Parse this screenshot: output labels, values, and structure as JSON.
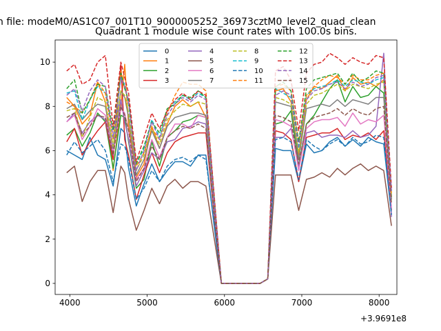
{
  "header": {
    "title": "n file: modeM0/AS1C07_001T10_9000005252_36973cztM0_level2_quad_clean",
    "subtitle": "Quadrant 1 module wise count rates with 100.0s bins."
  },
  "chart_data": {
    "type": "line",
    "x_offset_label": "+3.9691e8",
    "xlim": [
      3810,
      8230
    ],
    "ylim": [
      -0.5,
      11
    ],
    "xticks": [
      4000,
      5000,
      6000,
      7000,
      8000
    ],
    "xtick_labels": [
      "4000",
      "5000",
      "6000",
      "7000",
      "8000"
    ],
    "yticks": [
      0,
      2,
      4,
      6,
      8,
      10
    ],
    "ytick_labels": [
      "0",
      "2",
      "4",
      "6",
      "8",
      "10"
    ],
    "legend_position": "top-center",
    "legend_ncol": 4,
    "x": [
      3960,
      4060,
      4160,
      4260,
      4360,
      4460,
      4560,
      4660,
      4710,
      4760,
      4860,
      4960,
      5060,
      5160,
      5260,
      5360,
      5460,
      5560,
      5660,
      5760,
      5860,
      5960,
      6060,
      6160,
      6260,
      6360,
      6460,
      6560,
      6660,
      6760,
      6860,
      6960,
      7060,
      7160,
      7260,
      7360,
      7460,
      7560,
      7660,
      7760,
      7860,
      7960,
      8060,
      8160
    ],
    "series": [
      {
        "name": "0",
        "color": "#1f77b4",
        "dash": false,
        "values": [
          6.0,
          5.8,
          5.6,
          6.6,
          5.8,
          5.6,
          4.4,
          7.0,
          6.8,
          5.2,
          3.5,
          4.5,
          5.4,
          4.6,
          5.1,
          5.5,
          5.5,
          5.3,
          5.8,
          5.8,
          2.8,
          0,
          0,
          0,
          0,
          0,
          0,
          0.2,
          6.1,
          6.0,
          6.0,
          4.6,
          6.3,
          5.9,
          6.0,
          6.4,
          6.6,
          6.2,
          6.5,
          6.2,
          6.6,
          6.4,
          6.3,
          3.1
        ]
      },
      {
        "name": "1",
        "color": "#ff7f0e",
        "dash": false,
        "values": [
          8.4,
          8.0,
          7.2,
          7.6,
          9.1,
          8.2,
          5.1,
          8.0,
          9.9,
          7.1,
          4.8,
          5.4,
          7.1,
          6.1,
          7.2,
          8.0,
          8.3,
          8.0,
          8.2,
          7.5,
          3.8,
          0,
          0,
          0,
          0,
          0,
          0,
          0.2,
          8.7,
          8.8,
          8.2,
          5.8,
          8.3,
          8.9,
          8.8,
          9.1,
          9.4,
          8.7,
          9.3,
          9.0,
          9.1,
          8.9,
          9.2,
          3.9
        ]
      },
      {
        "name": "2",
        "color": "#2ca02c",
        "dash": false,
        "values": [
          6.7,
          7.0,
          6.2,
          6.8,
          7.7,
          7.3,
          5.2,
          7.6,
          7.5,
          6.4,
          4.3,
          4.7,
          6.4,
          5.3,
          6.6,
          6.9,
          7.3,
          7.4,
          7.6,
          7.5,
          3.6,
          0,
          0,
          0,
          0,
          0,
          0,
          0.2,
          7.2,
          7.3,
          7.8,
          5.3,
          7.2,
          7.6,
          8.2,
          8.8,
          9.2,
          8.2,
          8.9,
          8.4,
          8.5,
          8.9,
          8.6,
          3.9
        ]
      },
      {
        "name": "3",
        "color": "#d62728",
        "dash": false,
        "values": [
          6.4,
          7.0,
          5.8,
          6.4,
          6.9,
          7.3,
          5.6,
          9.9,
          6.5,
          5.8,
          3.8,
          4.9,
          5.9,
          5.0,
          5.9,
          6.4,
          6.6,
          6.7,
          6.8,
          6.8,
          3.3,
          0,
          0,
          0,
          0,
          0,
          0,
          0.2,
          6.9,
          6.8,
          6.5,
          4.6,
          6.6,
          6.7,
          6.8,
          6.8,
          7.0,
          6.5,
          6.7,
          6.6,
          6.8,
          6.5,
          6.9,
          3.3
        ]
      },
      {
        "name": "4",
        "color": "#9467bd",
        "dash": false,
        "values": [
          7.3,
          7.7,
          6.8,
          7.3,
          7.6,
          7.4,
          5.8,
          8.3,
          7.3,
          6.5,
          4.4,
          5.1,
          5.9,
          5.6,
          6.4,
          6.5,
          7.0,
          7.1,
          7.3,
          7.2,
          3.5,
          0,
          0,
          0,
          0,
          0,
          0,
          0.2,
          6.6,
          6.6,
          7.0,
          5.3,
          6.8,
          6.9,
          6.6,
          6.7,
          6.7,
          6.6,
          6.9,
          6.6,
          6.7,
          7.1,
          10.4,
          3.0
        ]
      },
      {
        "name": "5",
        "color": "#8c564b",
        "dash": false,
        "values": [
          5.0,
          5.3,
          3.7,
          4.6,
          5.1,
          5.1,
          3.2,
          5.3,
          5.0,
          3.8,
          2.4,
          3.3,
          4.3,
          3.6,
          4.4,
          4.7,
          4.3,
          4.6,
          4.6,
          4.4,
          2.2,
          0,
          0,
          0,
          0,
          0,
          0,
          0.2,
          4.9,
          4.9,
          4.9,
          3.3,
          4.7,
          4.8,
          5.0,
          4.8,
          5.2,
          4.9,
          5.2,
          5.4,
          5.1,
          5.3,
          5.1,
          2.6
        ]
      },
      {
        "name": "6",
        "color": "#e377c2",
        "dash": false,
        "values": [
          7.3,
          7.6,
          6.5,
          7.1,
          7.9,
          7.6,
          5.9,
          7.9,
          7.7,
          6.9,
          4.7,
          5.2,
          6.5,
          5.7,
          6.6,
          7.2,
          7.2,
          7.0,
          7.6,
          7.5,
          3.7,
          0,
          0,
          0,
          0,
          0,
          0,
          0.2,
          7.4,
          7.3,
          7.1,
          5.1,
          7.0,
          7.3,
          7.4,
          7.4,
          7.5,
          7.1,
          7.7,
          7.2,
          7.4,
          7.3,
          7.6,
          3.4
        ]
      },
      {
        "name": "7",
        "color": "#7f7f7f",
        "dash": false,
        "values": [
          7.9,
          8.1,
          7.4,
          7.8,
          8.1,
          8.0,
          6.1,
          8.7,
          8.4,
          7.5,
          4.9,
          5.6,
          6.9,
          6.1,
          7.1,
          7.5,
          7.6,
          7.7,
          7.7,
          7.6,
          3.8,
          0,
          0,
          0,
          0,
          0,
          0,
          0.2,
          8.2,
          8.1,
          8.0,
          5.6,
          7.9,
          8.0,
          8.1,
          8.0,
          8.3,
          8.0,
          8.3,
          8.2,
          8.1,
          8.4,
          8.4,
          3.8
        ]
      },
      {
        "name": "8",
        "color": "#bcbd22",
        "dash": true,
        "values": [
          7.8,
          7.9,
          6.6,
          7.5,
          8.4,
          8.2,
          6.2,
          8.7,
          8.5,
          7.7,
          5.1,
          5.8,
          7.0,
          6.3,
          7.4,
          7.8,
          8.1,
          8.0,
          8.2,
          8.1,
          4.0,
          0,
          0,
          0,
          0,
          0,
          0,
          0.2,
          8.4,
          8.3,
          8.1,
          5.9,
          8.1,
          8.5,
          8.6,
          8.8,
          9.0,
          8.7,
          9.0,
          8.9,
          8.8,
          9.0,
          9.1,
          4.0
        ]
      },
      {
        "name": "9",
        "color": "#17becf",
        "dash": true,
        "values": [
          8.6,
          8.7,
          7.4,
          8.3,
          8.9,
          8.6,
          6.5,
          9.3,
          9.0,
          8.1,
          5.4,
          6.1,
          7.4,
          6.6,
          7.8,
          8.2,
          8.5,
          8.3,
          8.6,
          8.4,
          4.1,
          0,
          0,
          0,
          0,
          0,
          0,
          0.2,
          8.8,
          8.6,
          8.4,
          6.1,
          8.5,
          8.8,
          8.9,
          9.0,
          9.2,
          8.9,
          9.2,
          9.1,
          9.0,
          9.2,
          9.3,
          4.2
        ]
      },
      {
        "name": "10",
        "color": "#1f77b4",
        "dash": true,
        "values": [
          5.8,
          6.4,
          5.9,
          6.2,
          6.5,
          6.0,
          4.6,
          6.3,
          6.2,
          5.6,
          3.8,
          4.3,
          5.1,
          4.6,
          5.3,
          5.6,
          5.7,
          5.5,
          5.8,
          5.6,
          2.9,
          0,
          0,
          0,
          0,
          0,
          0,
          0.2,
          6.5,
          6.6,
          6.4,
          4.7,
          6.5,
          6.2,
          6.0,
          6.3,
          6.5,
          6.2,
          6.6,
          6.3,
          6.4,
          6.7,
          6.6,
          3.1
        ]
      },
      {
        "name": "11",
        "color": "#ff7f0e",
        "dash": true,
        "values": [
          8.2,
          8.0,
          7.7,
          8.3,
          9.1,
          8.6,
          6.5,
          9.6,
          8.8,
          8.3,
          5.3,
          5.9,
          7.0,
          6.5,
          7.7,
          8.5,
          9.1,
          9.0,
          9.0,
          8.7,
          4.2,
          0,
          0,
          0,
          0,
          0,
          0,
          0.2,
          8.9,
          9.0,
          8.7,
          6.4,
          8.5,
          8.9,
          9.2,
          9.4,
          9.3,
          9.0,
          9.4,
          9.2,
          9.2,
          9.4,
          9.5,
          4.1
        ]
      },
      {
        "name": "12",
        "color": "#2ca02c",
        "dash": true,
        "values": [
          8.8,
          9.2,
          7.7,
          8.3,
          9.0,
          8.9,
          6.9,
          9.5,
          8.8,
          8.3,
          5.4,
          6.2,
          7.3,
          6.8,
          7.9,
          8.1,
          8.5,
          8.4,
          8.7,
          8.4,
          4.2,
          0,
          0,
          0,
          0,
          0,
          0,
          0.2,
          8.9,
          9.1,
          8.7,
          6.4,
          8.8,
          9.2,
          9.3,
          9.4,
          9.5,
          9.0,
          9.5,
          9.1,
          9.3,
          9.6,
          9.5,
          4.2
        ]
      },
      {
        "name": "13",
        "color": "#d62728",
        "dash": true,
        "values": [
          9.6,
          9.9,
          9.0,
          9.2,
          10.0,
          10.3,
          7.1,
          10.0,
          9.3,
          8.6,
          5.5,
          6.6,
          7.7,
          7.0,
          7.8,
          8.3,
          8.6,
          8.3,
          8.7,
          8.5,
          4.3,
          0,
          0,
          0,
          0,
          0,
          0,
          0.2,
          9.6,
          9.8,
          9.2,
          6.9,
          9.5,
          9.9,
          10.0,
          10.4,
          10.2,
          9.9,
          10.2,
          10.0,
          9.9,
          10.3,
          10.2,
          4.3
        ]
      },
      {
        "name": "14",
        "color": "#9467bd",
        "dash": true,
        "values": [
          8.5,
          8.8,
          7.8,
          8.7,
          9.2,
          8.9,
          6.6,
          9.3,
          8.9,
          8.2,
          5.1,
          6.0,
          7.3,
          6.5,
          7.6,
          8.1,
          8.4,
          8.2,
          8.5,
          8.3,
          4.0,
          0,
          0,
          0,
          0,
          0,
          0,
          0.2,
          8.5,
          8.7,
          8.5,
          6.2,
          8.3,
          8.7,
          8.8,
          9.0,
          9.1,
          8.8,
          9.1,
          8.9,
          9.0,
          9.3,
          9.4,
          4.1
        ]
      },
      {
        "name": "15",
        "color": "#8c564b",
        "dash": true,
        "values": [
          7.5,
          7.7,
          6.7,
          7.1,
          7.6,
          7.5,
          5.8,
          8.0,
          7.6,
          6.9,
          4.6,
          5.2,
          6.2,
          5.6,
          6.6,
          6.9,
          7.1,
          7.0,
          7.2,
          7.0,
          3.4,
          0,
          0,
          0,
          0,
          0,
          0,
          0.2,
          7.6,
          7.5,
          7.3,
          5.4,
          7.2,
          7.5,
          7.6,
          7.7,
          7.9,
          7.6,
          7.9,
          7.7,
          7.6,
          7.9,
          8.0,
          3.6
        ]
      }
    ]
  }
}
